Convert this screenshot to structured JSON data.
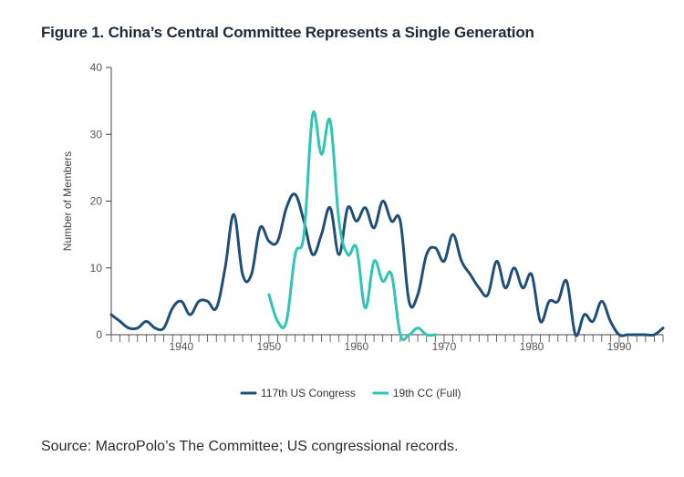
{
  "title": "Figure 1. China’s Central Committee Represents a Single Generation",
  "source": "Source: MacroPolo’s The Committee; US congressional records.",
  "chart_data": {
    "type": "line",
    "xlabel": "",
    "ylabel": "Number of Members",
    "xlim": [
      1932,
      1995
    ],
    "ylim": [
      0,
      40
    ],
    "xticks": [
      1940,
      1950,
      1960,
      1970,
      1980,
      1990
    ],
    "yticks": [
      0,
      10,
      20,
      30,
      40
    ],
    "grid": false,
    "legend_position": "bottom-center",
    "series": [
      {
        "name": "117th US Congress",
        "color": "#1f4e79",
        "x": [
          1932,
          1933,
          1934,
          1935,
          1936,
          1937,
          1938,
          1939,
          1940,
          1941,
          1942,
          1943,
          1944,
          1945,
          1946,
          1947,
          1948,
          1949,
          1950,
          1951,
          1952,
          1953,
          1954,
          1955,
          1956,
          1957,
          1958,
          1959,
          1960,
          1961,
          1962,
          1963,
          1964,
          1965,
          1966,
          1967,
          1968,
          1969,
          1970,
          1971,
          1972,
          1973,
          1974,
          1975,
          1976,
          1977,
          1978,
          1979,
          1980,
          1981,
          1982,
          1983,
          1984,
          1985,
          1986,
          1987,
          1988,
          1989,
          1990,
          1991,
          1992,
          1993,
          1994,
          1995
        ],
        "values": [
          3,
          2,
          1,
          1,
          2,
          1,
          1,
          4,
          5,
          3,
          5,
          5,
          4,
          10,
          18,
          9,
          9,
          16,
          14,
          14,
          19,
          21,
          17,
          12,
          15,
          19,
          12,
          19,
          17,
          19,
          16,
          20,
          17,
          17,
          5,
          6,
          12,
          13,
          11,
          15,
          11,
          9,
          7,
          6,
          11,
          7,
          10,
          7,
          9,
          2,
          5,
          5,
          8,
          0,
          3,
          2,
          5,
          2,
          0,
          0,
          0,
          0,
          0,
          1
        ]
      },
      {
        "name": "19th CC (Full)",
        "color": "#2ec4b6",
        "x": [
          1950,
          1951,
          1952,
          1953,
          1954,
          1955,
          1956,
          1957,
          1958,
          1959,
          1960,
          1961,
          1962,
          1963,
          1964,
          1965,
          1966,
          1967,
          1968,
          1969
        ],
        "values": [
          6,
          2,
          2,
          12,
          15,
          33,
          27,
          32,
          17,
          12,
          13,
          4,
          11,
          8,
          9,
          0,
          0,
          1,
          0,
          0
        ]
      }
    ]
  }
}
